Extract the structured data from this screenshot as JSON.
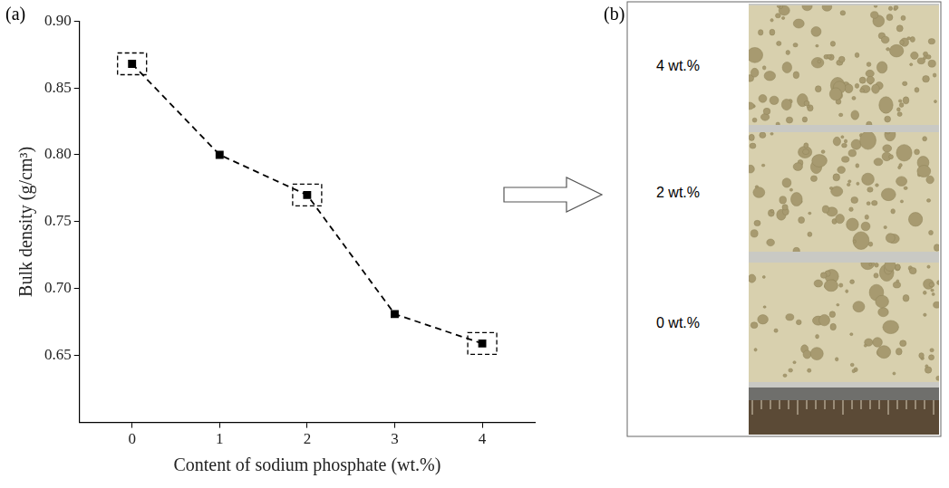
{
  "chart_data": {
    "type": "line",
    "panel": "(a)",
    "x": [
      0,
      1,
      2,
      3,
      4
    ],
    "values": [
      0.868,
      0.8,
      0.77,
      0.681,
      0.659
    ],
    "color": "#000000",
    "marker": "square",
    "line_style": "dashed",
    "boxed": [
      0,
      2,
      4
    ],
    "xlabel": "Content of sodium phosphate (wt.%)",
    "ylabel": "Bulk density (g/cm³)",
    "xlim": [
      -0.6,
      4.6
    ],
    "xticks": [
      0,
      1,
      2,
      3,
      4
    ],
    "ylim": [
      0.6,
      0.9
    ],
    "yticks": [
      0.65,
      {
        "value": 0.7,
        "label": "0.70"
      },
      0.75,
      {
        "value": 0.8,
        "label": "0.80"
      },
      0.85,
      {
        "value": 0.9,
        "label": "0.90"
      }
    ],
    "grid": false
  },
  "photo": {
    "panel": "(b)",
    "samples": [
      "4 wt.%",
      "2 wt.%",
      "0 wt.%"
    ]
  }
}
